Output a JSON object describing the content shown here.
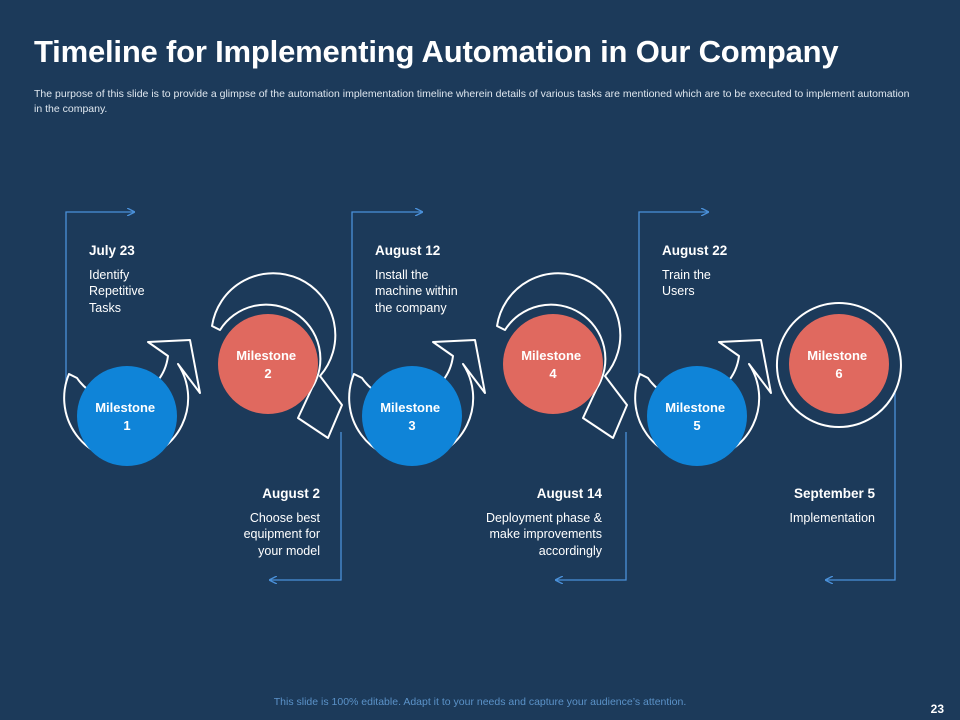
{
  "slide": {
    "title": "Timeline for Implementing Automation in Our Company",
    "subtitle": "The purpose of this slide is to provide a glimpse of the automation implementation timeline wherein details of various tasks are mentioned which are to be executed to implement automation in the company.",
    "footer": "This slide is 100% editable. Adapt it to your needs and capture your audience’s attention.",
    "page_number": "23"
  },
  "colors": {
    "background": "#1c3a5a",
    "blue_milestone": "#0f84d8",
    "red_milestone": "#e0695f",
    "connector": "#4a90d9",
    "outline": "#ffffff"
  },
  "milestones": [
    {
      "label_line1": "Milestone",
      "label_line2": "1",
      "date": "July 23",
      "task": "Identify Repetitive Tasks",
      "color": "blue"
    },
    {
      "label_line1": "Milestone",
      "label_line2": "2",
      "date": "August 2",
      "task": "Choose best equipment for your model",
      "color": "red"
    },
    {
      "label_line1": "Milestone",
      "label_line2": "3",
      "date": "August 12",
      "task": "Install the machine within the company",
      "color": "blue"
    },
    {
      "label_line1": "Milestone",
      "label_line2": "4",
      "date": "August 14",
      "task": "Deployment phase & make improvements accordingly",
      "color": "red"
    },
    {
      "label_line1": "Milestone",
      "label_line2": "5",
      "date": "August 22",
      "task": "Train the Users",
      "color": "blue"
    },
    {
      "label_line1": "Milestone",
      "label_line2": "6",
      "date": "September 5",
      "task": "Implementation",
      "color": "red"
    }
  ]
}
